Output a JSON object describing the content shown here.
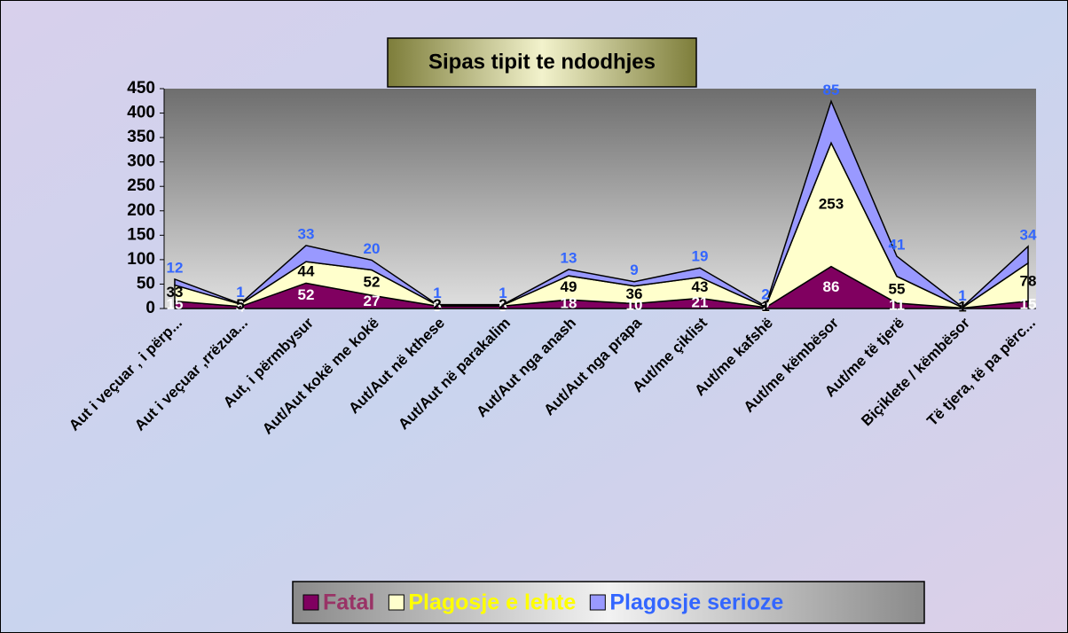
{
  "chart_data": {
    "type": "stacked_area",
    "title": "Sipas tipit te ndodhjes",
    "categories": [
      "Aut i veçuar , i përp...",
      "Aut i veçuar ,rrëzua...",
      "Aut, i përmbysur",
      "Aut/Aut kokë me kokë",
      "Aut/Aut në kthese",
      "Aut/Aut në parakalim",
      "Aut/Aut nga anash",
      "Aut/Aut nga prapa",
      "Aut/me çiklist",
      "Aut/me kafshë",
      "Aut/me këmbësor",
      "Aut/me të tjerë",
      "Biçiklete / këmbësor",
      "Të tjera, të pa përc..."
    ],
    "series": [
      {
        "name": "Fatal",
        "color": "#800060",
        "label_color": "#ffffff",
        "legend_color": "#993366",
        "values": [
          15,
          4,
          52,
          27,
          5,
          5,
          18,
          10,
          21,
          2,
          86,
          11,
          1,
          15
        ]
      },
      {
        "name": "Plagosje e lehte",
        "color": "#ffffcc",
        "label_color": "#000000",
        "legend_color": "#ffff00",
        "values": [
          33,
          5,
          44,
          52,
          2,
          2,
          49,
          36,
          43,
          1,
          253,
          55,
          1,
          78
        ]
      },
      {
        "name": "Plagosje serioze",
        "color": "#9999ff",
        "label_color": "#3366ff",
        "legend_color": "#3366ff",
        "values": [
          12,
          1,
          33,
          20,
          1,
          1,
          13,
          9,
          19,
          2,
          85,
          41,
          1,
          34
        ]
      }
    ],
    "ylim": [
      0,
      450
    ],
    "yticks": [
      0,
      50,
      100,
      150,
      200,
      250,
      300,
      350,
      400,
      450
    ],
    "grid": false,
    "legend": "bottom"
  }
}
